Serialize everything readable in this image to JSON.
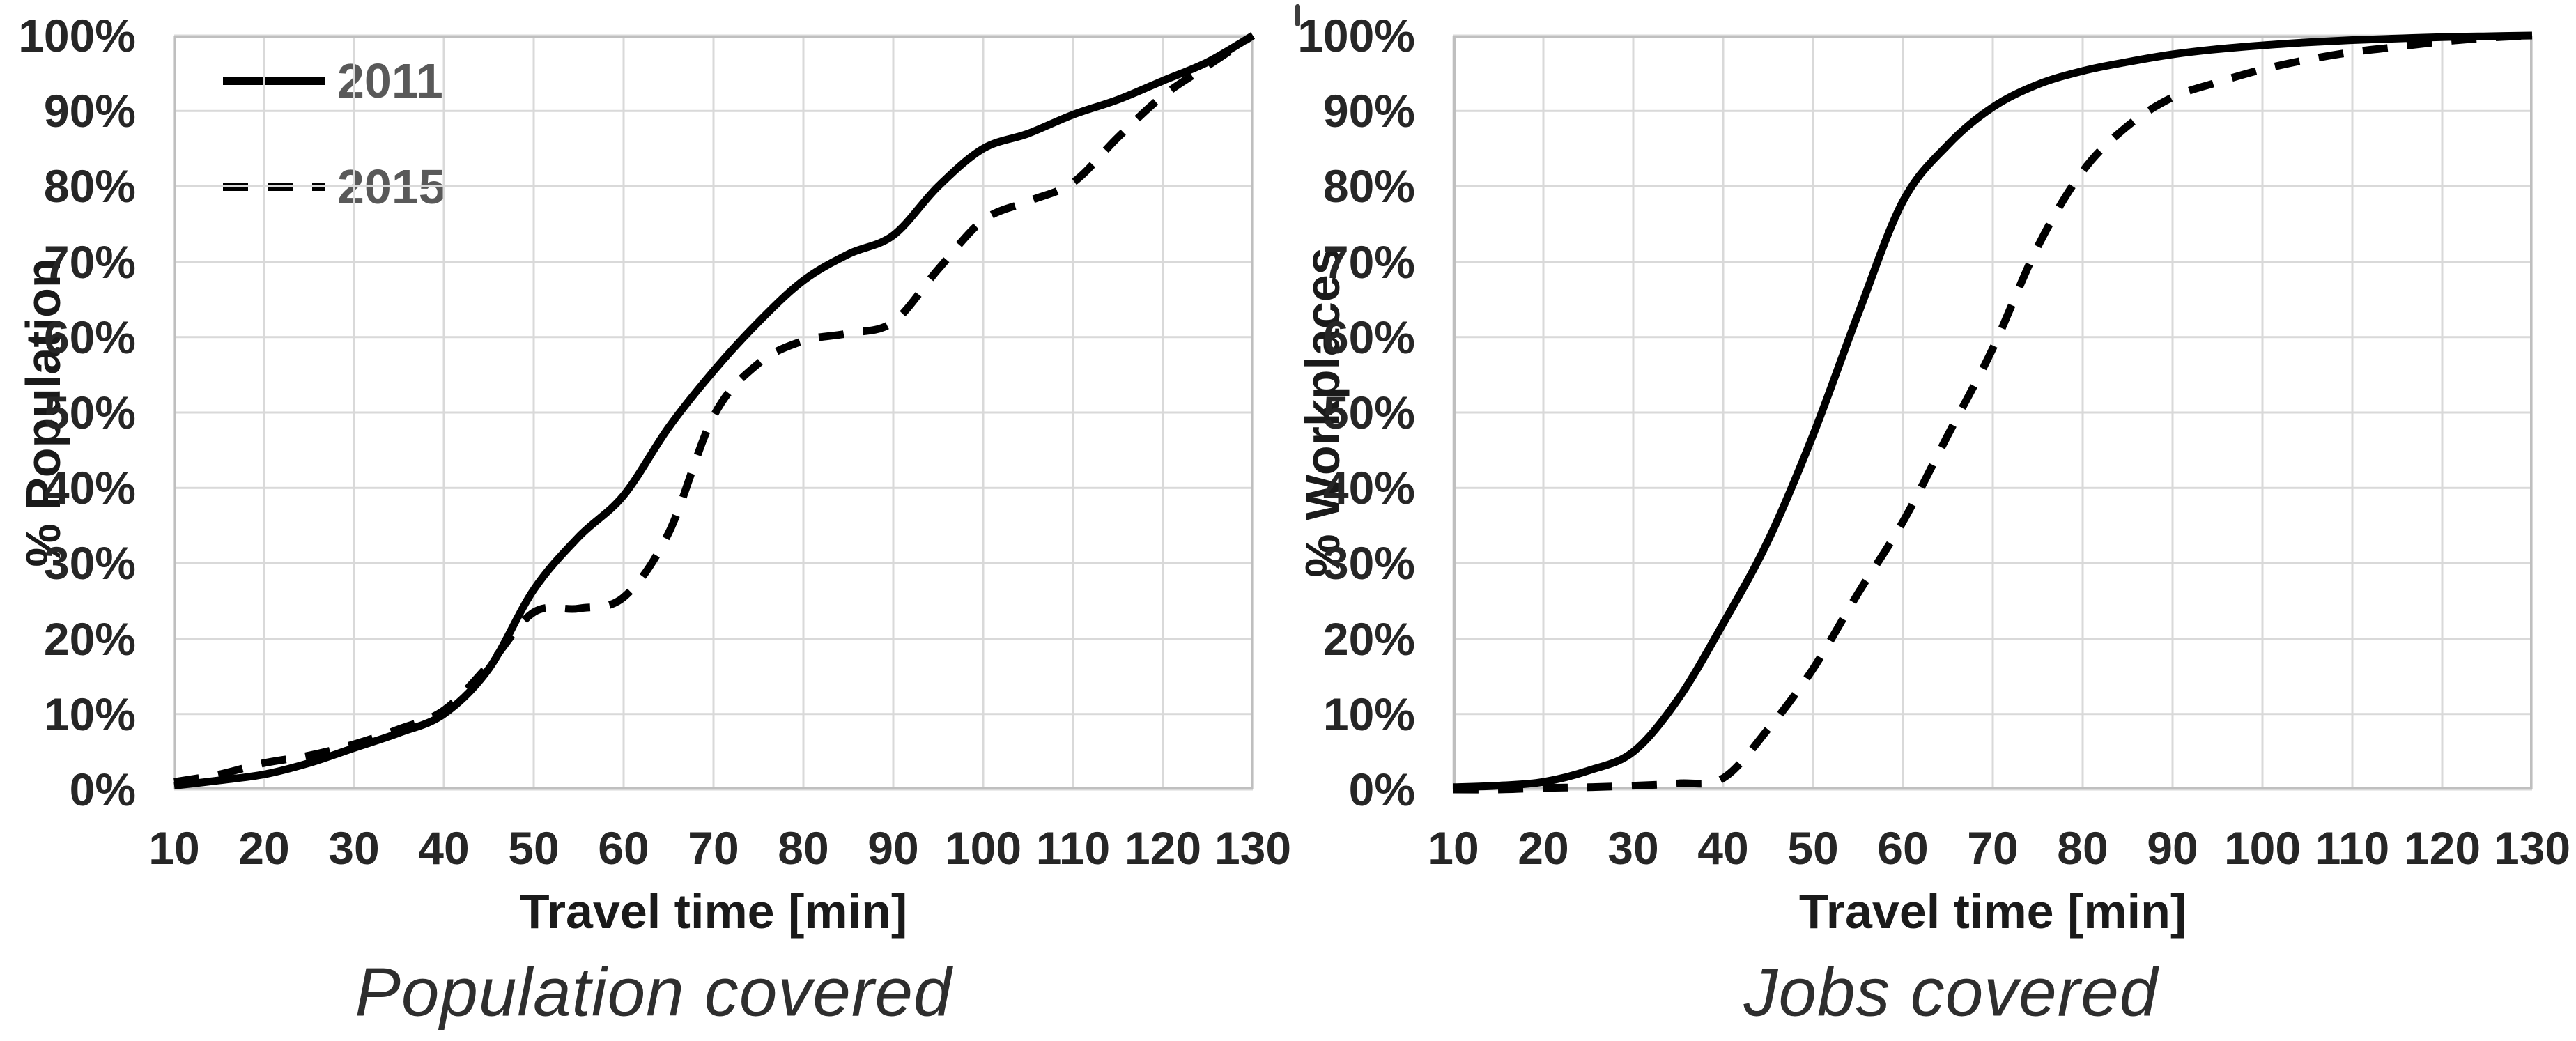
{
  "style": {
    "background": "#ffffff",
    "line_color": "#000000",
    "grid_color": "#d9d9d9",
    "border_color": "#bfbfbf",
    "tick_text_color": "#262626",
    "axis_title_color": "#1a1a1a",
    "legend_text_color": "#595959",
    "caption_color": "#2e2e2e",
    "line_width": 11,
    "dash_pattern": "36 28"
  },
  "chart_data": [
    {
      "type": "line",
      "caption": "Population covered",
      "xlabel": "Travel time [min]",
      "ylabel": "% Population",
      "xlim": [
        10,
        130
      ],
      "ylim": [
        0,
        100
      ],
      "grid": true,
      "legend": {
        "visible": true,
        "position": "top-left",
        "entries": [
          "2011",
          "2015"
        ]
      },
      "x_ticks": [
        "10",
        "20",
        "30",
        "40",
        "50",
        "60",
        "70",
        "80",
        "90",
        "100",
        "110",
        "120",
        "130"
      ],
      "y_ticks": [
        "0%",
        "10%",
        "20%",
        "30%",
        "40%",
        "50%",
        "60%",
        "70%",
        "80%",
        "90%",
        "100%"
      ],
      "x": [
        10,
        15,
        20,
        25,
        30,
        35,
        40,
        45,
        50,
        55,
        60,
        65,
        70,
        75,
        80,
        85,
        90,
        95,
        100,
        105,
        110,
        115,
        120,
        125,
        130
      ],
      "series": [
        {
          "name": "2011",
          "style": "solid",
          "values": [
            0.5,
            1.2,
            2,
            3.5,
            5.5,
            7.5,
            10,
            16,
            26.5,
            33.5,
            39,
            48,
            55.5,
            62,
            67.5,
            71,
            73.5,
            80,
            85,
            87,
            89.5,
            91.5,
            94,
            96.5,
            100
          ]
        },
        {
          "name": "2015",
          "style": "dashed",
          "values": [
            1,
            2,
            3.5,
            4.5,
            6,
            8,
            10.5,
            16.5,
            23.5,
            24,
            25.5,
            34,
            49.5,
            56.5,
            59.5,
            60.5,
            62,
            69,
            75.5,
            78,
            80.5,
            86.5,
            92,
            96,
            100
          ]
        }
      ]
    },
    {
      "type": "line",
      "caption": "Jobs covered",
      "xlabel": "Travel time [min]",
      "ylabel": "% Workplaces",
      "xlim": [
        10,
        130
      ],
      "ylim": [
        0,
        100
      ],
      "grid": true,
      "legend": {
        "visible": false,
        "position": "none",
        "entries": [
          "2011",
          "2015"
        ]
      },
      "x_ticks": [
        "10",
        "20",
        "30",
        "40",
        "50",
        "60",
        "70",
        "80",
        "90",
        "100",
        "110",
        "120",
        "130"
      ],
      "y_ticks": [
        "0%",
        "10%",
        "20%",
        "30%",
        "40%",
        "50%",
        "60%",
        "70%",
        "80%",
        "90%",
        "100%"
      ],
      "x": [
        10,
        15,
        20,
        25,
        30,
        35,
        40,
        45,
        50,
        55,
        60,
        65,
        70,
        75,
        80,
        85,
        90,
        95,
        100,
        105,
        110,
        115,
        120,
        125,
        130
      ],
      "series": [
        {
          "name": "2011",
          "style": "solid",
          "values": [
            0.3,
            0.5,
            1,
            2.5,
            5,
            12,
            22,
            33,
            47,
            63,
            78,
            85.5,
            90.5,
            93.5,
            95.3,
            96.5,
            97.5,
            98.2,
            98.7,
            99.1,
            99.4,
            99.6,
            99.8,
            99.9,
            100
          ]
        },
        {
          "name": "2015",
          "style": "dashed",
          "values": [
            0,
            0,
            0.2,
            0.3,
            0.5,
            0.8,
            1.5,
            8,
            16,
            26,
            35.5,
            47,
            58.5,
            72,
            82,
            88,
            91.8,
            93.8,
            95.5,
            96.8,
            97.8,
            98.5,
            99.2,
            99.7,
            100
          ]
        }
      ]
    }
  ]
}
